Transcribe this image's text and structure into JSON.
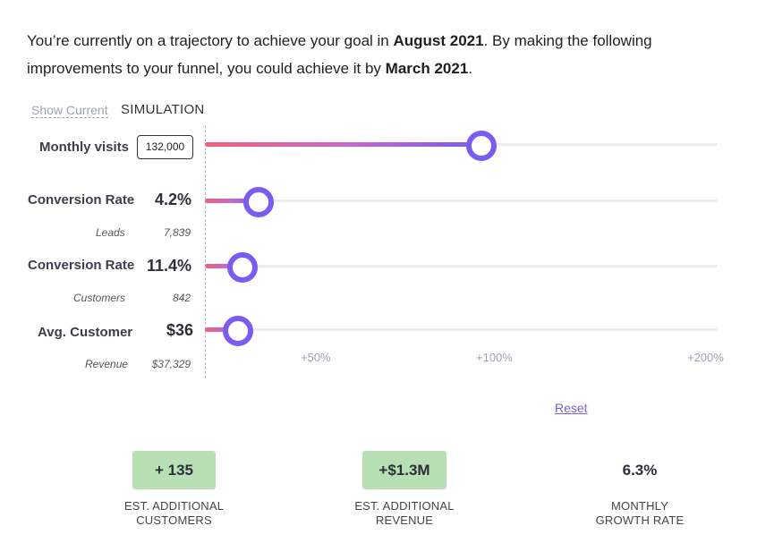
{
  "intro": {
    "part1": "You’re currently on a trajectory to achieve your goal in ",
    "date_current": "August 2021",
    "part2": ". By making the following improvements to your funnel, you could achieve it by ",
    "date_improved": "March 2021",
    "part3": "."
  },
  "modes": {
    "show_current": "Show Current",
    "simulation": "SIMULATION"
  },
  "rows": {
    "visits": {
      "label": "Monthly visits",
      "value": "132,000",
      "slider_fraction": 0.54
    },
    "conv_leads": {
      "label": "Conversion Rate",
      "value": "4.2%",
      "sub_label": "Leads",
      "sub_value": "7,839",
      "slider_fraction": 0.105
    },
    "conv_customers": {
      "label": "Conversion Rate",
      "value": "11.4%",
      "sub_label": "Customers",
      "sub_value": "842",
      "slider_fraction": 0.073
    },
    "avg_customer": {
      "label": "Avg. Customer",
      "value": "$36",
      "sub_label": "Revenue",
      "sub_value": "$37,329",
      "slider_fraction": 0.064
    }
  },
  "ticks": [
    "+50%",
    "+100%",
    "+200%"
  ],
  "colors": {
    "slider_gradient_start": "#f0607a",
    "slider_gradient_end": "#7a5cf0",
    "handle": "#7b5cf2",
    "badge_green": "#b8e0b4",
    "reset_link": "#7b62d8"
  },
  "reset_label": "Reset",
  "stats": [
    {
      "value": "+ 135",
      "label_line1": "EST. ADDITIONAL",
      "label_line2": "CUSTOMERS"
    },
    {
      "value": "+$1.3M",
      "label_line1": "EST. ADDITIONAL",
      "label_line2": "REVENUE"
    },
    {
      "value": "6.3%",
      "label_line1": "MONTHLY",
      "label_line2": "GROWTH RATE"
    }
  ]
}
